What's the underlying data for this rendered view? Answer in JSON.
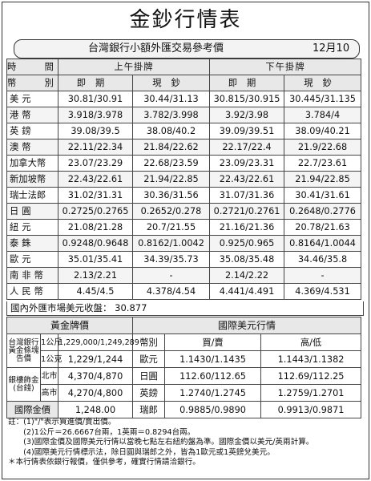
{
  "title": "金鈔行情表",
  "subtitle": {
    "text": "台灣銀行小額外匯交易參考價",
    "date": "12月10日"
  },
  "header": {
    "time_label": "時　間",
    "currency_label": "幣　別",
    "am_label": "上午掛牌",
    "pm_label": "下午掛牌",
    "spot_label": "即期",
    "cash_label": "現鈔"
  },
  "rates": [
    {
      "currency": "美元",
      "am_spot": "30.81/30.91",
      "am_cash": "30.44/31.13",
      "pm_spot": "30.815/30.915",
      "pm_cash": "30.445/31.135"
    },
    {
      "currency": "港幣",
      "am_spot": "3.918/3.978",
      "am_cash": "3.782/3.998",
      "pm_spot": "3.92/3.98",
      "pm_cash": "3.784/4"
    },
    {
      "currency": "英鎊",
      "am_spot": "39.08/39.5",
      "am_cash": "38.08/40.2",
      "pm_spot": "39.09/39.51",
      "pm_cash": "38.09/40.21"
    },
    {
      "currency": "澳幣",
      "am_spot": "22.11/22.34",
      "am_cash": "21.84/22.62",
      "pm_spot": "22.17/22.4",
      "pm_cash": "21.9/22.68"
    },
    {
      "currency": "加拿大幣",
      "am_spot": "23.07/23.29",
      "am_cash": "22.68/23.59",
      "pm_spot": "23.09/23.31",
      "pm_cash": "22.7/23.61"
    },
    {
      "currency": "新加坡幣",
      "am_spot": "22.43/22.61",
      "am_cash": "21.94/22.85",
      "pm_spot": "22.43/22.61",
      "pm_cash": "21.94/22.85"
    },
    {
      "currency": "瑞士法郎",
      "am_spot": "31.02/31.31",
      "am_cash": "30.36/31.56",
      "pm_spot": "31.07/31.36",
      "pm_cash": "30.41/31.61"
    },
    {
      "currency": "日圓",
      "am_spot": "0.2725/0.2765",
      "am_cash": "0.2652/0.278",
      "pm_spot": "0.2721/0.2761",
      "pm_cash": "0.2648/0.2776"
    },
    {
      "currency": "紐元",
      "am_spot": "21.08/21.28",
      "am_cash": "20.7/21.55",
      "pm_spot": "21.16/21.36",
      "pm_cash": "20.78/21.63"
    },
    {
      "currency": "泰銖",
      "am_spot": "0.9248/0.9648",
      "am_cash": "0.8162/1.0042",
      "pm_spot": "0.925/0.965",
      "pm_cash": "0.8164/1.0044"
    },
    {
      "currency": "歐元",
      "am_spot": "35.01/35.41",
      "am_cash": "34.39/35.73",
      "pm_spot": "35.08/35.48",
      "pm_cash": "34.46/35.8"
    },
    {
      "currency": "南非幣",
      "am_spot": "2.13/2.21",
      "am_cash": "-",
      "pm_spot": "2.14/2.22",
      "pm_cash": "-"
    },
    {
      "currency": "人民幣",
      "am_spot": "4.45/4.5",
      "am_cash": "4.378/4.54",
      "pm_spot": "4.441/4.491",
      "pm_cash": "4.369/4.531"
    }
  ],
  "domestic_close": "國內外匯市場美元收盤：  30.877",
  "gold": {
    "header": "黃金牌價",
    "bank_label": "台灣銀行黃金條塊告價",
    "rows": [
      {
        "unit": "1公斤",
        "price": "1,229,000/1,249,289"
      },
      {
        "unit": "1公克",
        "price": "1,229/1,244"
      }
    ],
    "jewelry_label": "銀樓飾金(台錢)",
    "jewelry_rows": [
      {
        "city": "北市",
        "price": "4,370/4,870"
      },
      {
        "city": "高市",
        "price": "4,270/4,800"
      }
    ],
    "intl_label": "國際金價",
    "intl_price": "1,248.00"
  },
  "usd_intl": {
    "header": "國際美元行情",
    "col_currency": "幣別",
    "col_buysell": "買/賣",
    "col_highlow": "高/低",
    "rows": [
      {
        "currency": "歐元",
        "buysell": "1.1430/1.1435",
        "highlow": "1.1443/1.1382"
      },
      {
        "currency": "日圓",
        "buysell": "112.60/112.65",
        "highlow": "112.69/112.25"
      },
      {
        "currency": "英鎊",
        "buysell": "1.2740/1.2745",
        "highlow": "1.2759/1.2701"
      },
      {
        "currency": "瑞郎",
        "buysell": "0.9885/0.9890",
        "highlow": "0.9913/0.9871"
      }
    ]
  },
  "notes": [
    "註：(1)\"/\"表示買進價/賣出價。",
    "　　(2)1公斤＝26.6667台兩，1英兩＝0.8294台兩。",
    "　　(3)國際金價及國際美元行情以當晚七點左右紐約盤為準。國際金價以美元/英兩計算。",
    "　　(4)國際美元行情標示法，除日圓與瑞郎之外，皆為1歐元或1英鎊兌美元。",
    "＊本行情表依銀行報價，僅供參考，確實行情請洽銀行。"
  ]
}
